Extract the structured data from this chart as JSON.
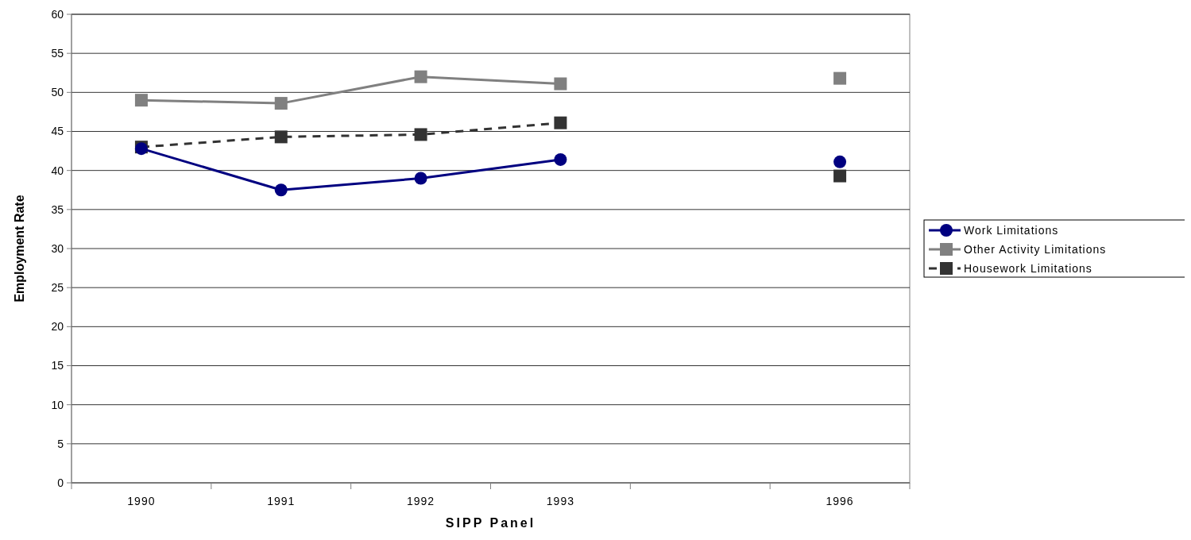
{
  "chart_data": {
    "type": "line",
    "xlabel": "SIPP Panel",
    "ylabel": "Employment Rate",
    "categories": [
      "1990",
      "1991",
      "1992",
      "1993",
      null,
      "1996"
    ],
    "series": [
      {
        "name": "Work Limitations",
        "color": "#000080",
        "marker": "circle",
        "line_style": "solid",
        "values": [
          42.8,
          37.5,
          39.0,
          41.4,
          null,
          41.1
        ]
      },
      {
        "name": "Other Activity Limitations",
        "color": "#808080",
        "marker": "square",
        "line_style": "solid",
        "values": [
          49.0,
          48.6,
          52.0,
          51.1,
          null,
          51.8
        ]
      },
      {
        "name": "Housework Limitations",
        "color": "#333333",
        "marker": "square",
        "line_style": "dashed",
        "values": [
          43.0,
          44.3,
          44.6,
          46.1,
          null,
          39.3
        ]
      }
    ],
    "ylim": [
      0,
      60
    ],
    "yticks": [
      0,
      5,
      10,
      15,
      20,
      25,
      30,
      35,
      40,
      45,
      50,
      55,
      60
    ],
    "grid": "y",
    "legend": "right"
  }
}
